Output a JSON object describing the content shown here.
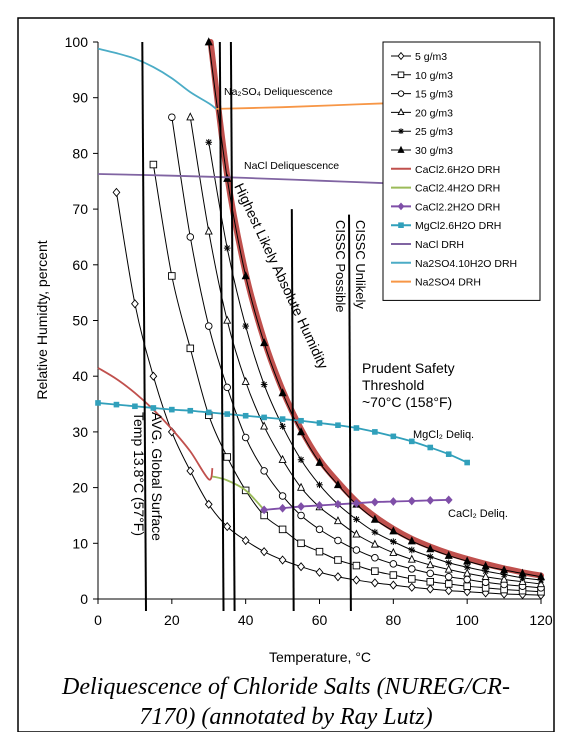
{
  "caption": {
    "line1": "Deliquescence of Chloride Salts (NUREG/CR-",
    "line2": "7170) (annotated by Ray Lutz)"
  },
  "chart_data": {
    "type": "line",
    "xlabel": "Temperature, °C",
    "ylabel": "Relative Humidty, percent",
    "xlim": [
      0,
      120
    ],
    "ylim": [
      0,
      100
    ],
    "xticks": [
      0,
      20,
      40,
      60,
      80,
      100,
      120
    ],
    "yticks": [
      0,
      10,
      20,
      30,
      40,
      50,
      60,
      70,
      80,
      90,
      100
    ],
    "grid": false,
    "legend_position": "top-right",
    "series": [
      {
        "name": "5 g/m3",
        "marker": "diamond",
        "color": "#000000",
        "x": [
          5,
          10,
          15,
          20,
          25,
          30,
          35,
          40,
          45,
          50,
          55,
          60,
          65,
          70,
          75,
          80,
          85,
          90,
          95,
          100,
          105,
          110,
          115,
          120
        ],
        "y": [
          73,
          53,
          40,
          30,
          23,
          17,
          13,
          10.5,
          8.5,
          7,
          5.8,
          4.8,
          4,
          3.4,
          2.9,
          2.5,
          2.1,
          1.8,
          1.5,
          1.3,
          1.1,
          0.9,
          0.8,
          0.7
        ]
      },
      {
        "name": "10 g/m3",
        "marker": "square",
        "color": "#000000",
        "x": [
          15,
          20,
          25,
          30,
          35,
          40,
          45,
          50,
          55,
          60,
          65,
          70,
          75,
          80,
          85,
          90,
          95,
          100,
          105,
          110,
          115,
          120
        ],
        "y": [
          78,
          58,
          45,
          33,
          25.5,
          19.5,
          15,
          12.5,
          10,
          8.5,
          7,
          6,
          5,
          4.3,
          3.6,
          3.1,
          2.7,
          2.3,
          2,
          1.7,
          1.5,
          1.3
        ]
      },
      {
        "name": "15 g/m3",
        "marker": "circle",
        "color": "#000000",
        "x": [
          20,
          25,
          30,
          35,
          40,
          45,
          50,
          55,
          60,
          65,
          70,
          75,
          80,
          85,
          90,
          95,
          100,
          105,
          110,
          115,
          120
        ],
        "y": [
          86.5,
          65,
          49,
          38,
          29,
          23,
          18.5,
          15,
          12.5,
          10.5,
          8.8,
          7.4,
          6.3,
          5.4,
          4.6,
          4,
          3.5,
          3,
          2.6,
          2.3,
          2
        ]
      },
      {
        "name": "20 g/m3",
        "marker": "triangle",
        "color": "#000000",
        "x": [
          25,
          30,
          35,
          40,
          45,
          50,
          55,
          60,
          65,
          70,
          75,
          80,
          85,
          90,
          95,
          100,
          105,
          110,
          115,
          120
        ],
        "y": [
          86.5,
          66,
          50,
          39,
          31,
          25,
          20,
          16.5,
          14,
          11.6,
          9.8,
          8.3,
          7.1,
          6.1,
          5.3,
          4.6,
          4,
          3.5,
          3.1,
          2.7
        ]
      },
      {
        "name": "25 g/m3",
        "marker": "star",
        "color": "#000000",
        "x": [
          30,
          35,
          40,
          45,
          50,
          55,
          60,
          65,
          70,
          75,
          80,
          85,
          90,
          95,
          100,
          105,
          110,
          115,
          120
        ],
        "y": [
          82,
          63,
          49,
          38.5,
          31,
          25,
          20.5,
          17,
          14.3,
          12,
          10.3,
          8.8,
          7.6,
          6.5,
          5.7,
          5,
          4.4,
          3.8,
          3.4
        ]
      },
      {
        "name": "30 g/m3",
        "marker": "filled-triangle",
        "color": "#000000",
        "x": [
          30,
          35,
          40,
          45,
          50,
          55,
          60,
          65,
          70,
          75,
          80,
          85,
          90,
          95,
          100,
          105,
          110,
          115,
          120
        ],
        "y": [
          100,
          75.5,
          58,
          46,
          37,
          30,
          24.5,
          20.5,
          17,
          14.3,
          12.2,
          10.4,
          9,
          7.8,
          6.8,
          5.9,
          5.2,
          4.6,
          4
        ]
      },
      {
        "name": "CaCl2.6H2O DRH",
        "marker": "none",
        "color": "#c0504d",
        "x": [
          0,
          5,
          10,
          15,
          20,
          25,
          30,
          31
        ],
        "y": [
          41.5,
          39.5,
          37,
          34,
          30.5,
          26.5,
          21.5,
          23.5
        ]
      },
      {
        "name": "CaCl2.4H2O DRH",
        "marker": "none",
        "color": "#9bbb59",
        "x": [
          31,
          35,
          40,
          45
        ],
        "y": [
          22,
          21.3,
          19.5,
          16
        ]
      },
      {
        "name": "CaCl2.2H2O DRH",
        "marker": "filled-diamond",
        "color": "#7f4fa8",
        "x": [
          45,
          50,
          55,
          60,
          65,
          70,
          75,
          80,
          85,
          90,
          95
        ],
        "y": [
          16,
          16.3,
          16.6,
          16.8,
          17,
          17.2,
          17.4,
          17.5,
          17.6,
          17.7,
          17.8
        ]
      },
      {
        "name": "MgCl2.6H2O DRH",
        "marker": "filled-square",
        "color": "#31a0bb",
        "x": [
          0,
          5,
          10,
          15,
          20,
          25,
          30,
          35,
          40,
          45,
          50,
          55,
          60,
          65,
          70,
          75,
          80,
          85,
          90,
          95,
          100
        ],
        "y": [
          35.2,
          34.9,
          34.6,
          34.3,
          34,
          33.8,
          33.5,
          33.2,
          32.9,
          32.6,
          32.3,
          32,
          31.6,
          31.2,
          30.7,
          30,
          29.2,
          28.3,
          27.2,
          26,
          24.5
        ]
      },
      {
        "name": "NaCl DRH",
        "marker": "none",
        "color": "#8064a2",
        "x": [
          0,
          20,
          40,
          60,
          80,
          100
        ],
        "y": [
          76.3,
          76,
          75.6,
          75.1,
          74.6,
          74
        ]
      },
      {
        "name": "Na2SO4.10H2O DRH",
        "marker": "none",
        "color": "#4bacc6",
        "x": [
          0,
          5,
          10,
          15,
          20,
          25,
          30,
          32
        ],
        "y": [
          98.8,
          98,
          97,
          95.5,
          93.5,
          91,
          89,
          88
        ]
      },
      {
        "name": "Na2SO4 DRH",
        "marker": "none",
        "color": "#f79646",
        "x": [
          32,
          50,
          70,
          90,
          100
        ],
        "y": [
          88,
          88.3,
          88.8,
          89.3,
          89.6
        ]
      }
    ],
    "highest_curve": {
      "color": "#c0504d",
      "x": [
        30.5,
        35,
        40,
        45,
        50,
        55,
        60,
        65,
        70,
        75,
        80,
        85,
        90,
        95,
        100,
        105,
        110,
        115,
        120
      ],
      "y": [
        100,
        76,
        58.5,
        46.5,
        37.5,
        30.5,
        25,
        21,
        17.5,
        14.8,
        12.6,
        10.8,
        9.4,
        8.2,
        7.2,
        6.3,
        5.5,
        4.8,
        4.2
      ]
    },
    "vertical_lines": [
      {
        "x_top": 12,
        "x_bottom": 13,
        "y_top": 100
      },
      {
        "x_top": 33,
        "x_bottom": 34,
        "y_top": 100
      },
      {
        "x_top": 36,
        "x_bottom": 37,
        "y_top": 100
      },
      {
        "x_top": 52.5,
        "x_bottom": 53,
        "y_top": 70
      },
      {
        "x_top": 68,
        "x_bottom": 68.5,
        "y_top": 69
      }
    ],
    "annotations": {
      "na2so4_deliq": "Na₂SO₄ Deliquescence",
      "nacl_deliq": "NaCl Deliquescence",
      "mgcl2_deliq": "MgCl₂ Deliq.",
      "cacl2_deliq": "CaCl₂ Deliq.",
      "highest_label": "Highest Likely Absolute Humidity",
      "cissc_unlikely": "CISSC Unlikely",
      "cissc_possible": "CISSC Possible",
      "prudent_line1": "Prudent Safety",
      "prudent_line2": "Threshold",
      "prudent_line3": "~70°C (158°F)",
      "global_line1": "AVG. Global Surface",
      "global_line2": "Temp 13.8°C (57°F)"
    }
  }
}
